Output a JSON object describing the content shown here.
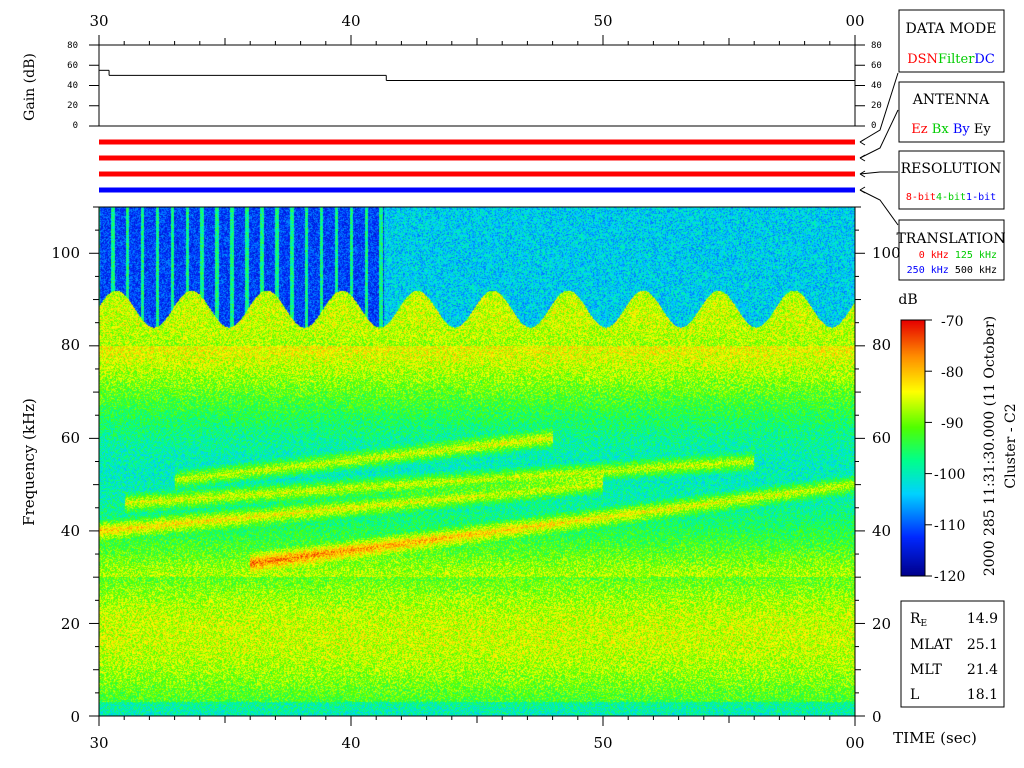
{
  "time_axis": {
    "ticks": [
      "30",
      "40",
      "50",
      "00"
    ],
    "label": "TIME (sec)"
  },
  "gain_panel": {
    "ylabel": "Gain (dB)",
    "ticks": [
      "80",
      "60",
      "40",
      "20",
      "0"
    ]
  },
  "spectrogram": {
    "ylabel": "Frequency (kHz)",
    "ticks": [
      "100",
      "80",
      "60",
      "40",
      "20",
      "0"
    ]
  },
  "colorbar": {
    "unit": "dB",
    "ticks": [
      "-70",
      "-80",
      "-90",
      "-100",
      "-110",
      "-120"
    ]
  },
  "side_caption": {
    "timestamp": "2000 285 11:31:30.000 (11 October)",
    "mission": "Cluster - C2"
  },
  "legend": {
    "data_mode": {
      "title": "DATA MODE",
      "items": [
        {
          "text": "DSN",
          "color": "#ff0000"
        },
        {
          "text": "Filter",
          "color": "#00cc00"
        },
        {
          "text": "DC",
          "color": "#0000ff"
        }
      ]
    },
    "antenna": {
      "title": "ANTENNA",
      "items": [
        {
          "text": "Ez",
          "color": "#ff0000"
        },
        {
          "text": "Bx",
          "color": "#00cc00"
        },
        {
          "text": "By",
          "color": "#0000ff"
        },
        {
          "text": "Ey",
          "color": "#000000"
        }
      ]
    },
    "resolution": {
      "title": "RESOLUTION",
      "items": [
        {
          "text": "8-bit",
          "color": "#ff0000"
        },
        {
          "text": "4-bit",
          "color": "#00cc00"
        },
        {
          "text": "1-bit",
          "color": "#0000ff"
        }
      ]
    },
    "translation": {
      "title": "TRANSLATION",
      "row1": [
        {
          "text": "0 kHz",
          "color": "#ff0000"
        },
        {
          "text": "125 kHz",
          "color": "#00cc00"
        }
      ],
      "row2": [
        {
          "text": "250 kHz",
          "color": "#0000ff"
        },
        {
          "text": "500 kHz",
          "color": "#000000"
        }
      ]
    }
  },
  "ephemeris": {
    "re": {
      "label": "R",
      "sub": "E",
      "value": "14.9"
    },
    "mlat": {
      "label": "MLAT",
      "value": "25.1"
    },
    "mlt": {
      "label": "MLT",
      "value": "21.4"
    },
    "l": {
      "label": "L",
      "value": "18.1"
    }
  },
  "chart_data": {
    "type": "heatmap",
    "xlabel": "TIME (sec)",
    "ylabel": "Frequency (kHz)",
    "x_ticks": [
      "30",
      "40",
      "50",
      "00"
    ],
    "xlim": [
      30,
      60
    ],
    "ylim": [
      0,
      110
    ],
    "y_ticks": [
      0,
      20,
      40,
      60,
      80,
      100
    ],
    "colorbar_label": "dB",
    "clim": [
      -120,
      -70
    ],
    "gain": {
      "ylabel": "Gain (dB)",
      "ylim": [
        0,
        80
      ],
      "segments": [
        {
          "t": [
            30.0,
            30.4
          ],
          "gain": 55
        },
        {
          "t": [
            30.4,
            41.4
          ],
          "gain": 50
        },
        {
          "t": [
            41.4,
            60.0
          ],
          "gain": 45
        }
      ]
    },
    "mode_bars": [
      {
        "row": "data_mode",
        "color": "#ff0000",
        "t": [
          30,
          60
        ]
      },
      {
        "row": "antenna",
        "color": "#ff0000",
        "t": [
          30,
          60
        ]
      },
      {
        "row": "resolution",
        "color": "#ff0000",
        "t": [
          30,
          60
        ]
      },
      {
        "row": "translation",
        "color": "#0000ff",
        "t": [
          30,
          60
        ]
      }
    ],
    "emission_bands": [
      {
        "t0": 33,
        "f0": 51,
        "t1": 48,
        "f1": 60
      },
      {
        "t0": 31,
        "f0": 46,
        "t1": 56,
        "f1": 55
      },
      {
        "t0": 30,
        "f0": 40,
        "t1": 50,
        "f1": 50
      },
      {
        "t0": 36,
        "f0": 33,
        "t1": 60,
        "f1": 50
      }
    ],
    "background_cutoff_khz": 88,
    "quiet_interval": [
      30,
      41.3
    ]
  }
}
